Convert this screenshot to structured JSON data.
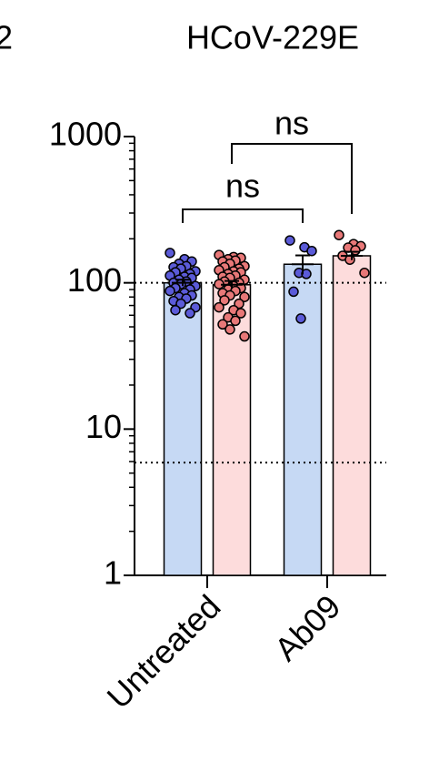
{
  "chart_data": {
    "type": "bar",
    "panel_label": "2",
    "title": "HCoV-229E",
    "categories": [
      "Untreated",
      "Ab09"
    ],
    "log_scale": true,
    "ylim": [
      1,
      1000
    ],
    "yticks": [
      1,
      10,
      100,
      1000
    ],
    "minor_yticks": [
      2,
      3,
      4,
      5,
      6,
      7,
      8,
      9,
      20,
      30,
      40,
      50,
      60,
      70,
      80,
      90,
      200,
      300,
      400,
      500,
      600,
      700,
      800,
      900
    ],
    "reference_lines": [
      100,
      5.9
    ],
    "series": [
      {
        "color": "#c6d9f4",
        "point_color": "#5b5bd8",
        "values": [
          100,
          134
        ],
        "errors": [
          5,
          20
        ],
        "points": [
          [
            160,
            145,
            140,
            135,
            130,
            128,
            125,
            120,
            118,
            115,
            112,
            110,
            108,
            105,
            102,
            100,
            98,
            95,
            92,
            90,
            88,
            85,
            82,
            80,
            78,
            75,
            72,
            68,
            65,
            62
          ],
          [
            195,
            175,
            165,
            117,
            115,
            87,
            57
          ]
        ]
      },
      {
        "color": "#fddcdc",
        "point_color": "#e87878",
        "values": [
          97,
          153
        ],
        "errors": [
          6,
          10
        ],
        "points": [
          [
            155,
            150,
            148,
            145,
            142,
            140,
            135,
            130,
            128,
            125,
            122,
            120,
            118,
            115,
            112,
            110,
            108,
            105,
            102,
            100,
            98,
            95,
            92,
            90,
            88,
            85,
            82,
            80,
            76,
            72,
            68,
            65,
            62,
            58,
            55,
            52,
            48,
            43
          ],
          [
            212,
            184,
            178,
            174,
            167,
            153,
            144,
            117
          ]
        ]
      }
    ],
    "comparisons": [
      {
        "label": "ns",
        "series": 0
      },
      {
        "label": "ns",
        "series": 1
      }
    ]
  }
}
